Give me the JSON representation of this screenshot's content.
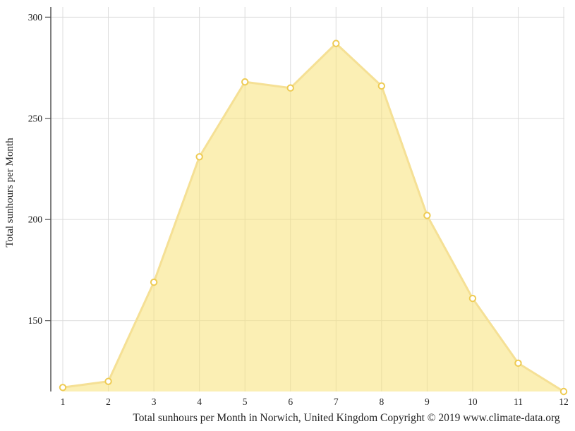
{
  "figure": {
    "caption": "Total sunhours per Month in Norwich, United Kingdom Copyright © 2019 www.climate-data.org",
    "ylabel": "Total sunhours per Month"
  },
  "chart_data": {
    "type": "area",
    "x": [
      1,
      2,
      3,
      4,
      5,
      6,
      7,
      8,
      9,
      10,
      11,
      12
    ],
    "series": [
      {
        "name": "Total sunhours per Month",
        "values": [
          117,
          120,
          169,
          231,
          268,
          265,
          287,
          266,
          202,
          161,
          129,
          115
        ]
      }
    ],
    "title": "Total sunhours per Month in Norwich, United Kingdom Copyright © 2019 www.climate-data.org",
    "xlabel": "",
    "ylabel": "Total sunhours per Month",
    "ylim": [
      115,
      305
    ],
    "yticks": [
      150,
      200,
      250,
      300
    ],
    "xticks": [
      "1",
      "2",
      "3",
      "4",
      "5",
      "6",
      "7",
      "8",
      "9",
      "10",
      "11",
      "12"
    ],
    "grid": true,
    "legend": false,
    "colors": {
      "fill": "#F7E176",
      "fill_opacity": 0.55,
      "line": "#F5E095",
      "marker_fill": "#FFFFFF",
      "marker_stroke": "#EECB53",
      "grid": "#DCDCDC",
      "axis": "#555555",
      "text": "#222222"
    }
  }
}
